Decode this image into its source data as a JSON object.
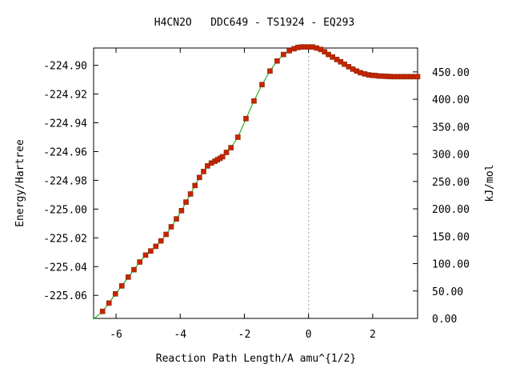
{
  "chart_data": {
    "type": "line",
    "title": "H4CN2O   DDC649 - TS1924 - EQ293",
    "xlabel": "Reaction Path Length/A amu^{1/2}",
    "ylabel": "Energy/Hartree",
    "y2label": "kJ/mol",
    "xlim": [
      -6.7,
      3.4
    ],
    "ylim": [
      -225.076,
      -224.888
    ],
    "y2lim": [
      0,
      493.6
    ],
    "x_ticks": [
      -6,
      -4,
      -2,
      0,
      2
    ],
    "y_ticks": [
      -225.06,
      -225.04,
      -225.02,
      -225.0,
      -224.98,
      -224.96,
      -224.94,
      -224.92,
      -224.9
    ],
    "y2_ticks": [
      0,
      50,
      100,
      150,
      200,
      250,
      300,
      350,
      400,
      450
    ],
    "x_tick_labels": [
      "-6",
      "-4",
      "-2",
      "0",
      "2"
    ],
    "y_tick_labels": [
      "-225.06",
      "-225.04",
      "-225.02",
      "-225.00",
      "-224.98",
      "-224.96",
      "-224.94",
      "-224.92",
      "-224.90"
    ],
    "y2_tick_labels": [
      "0.00",
      "50.00",
      "100.00",
      "150.00",
      "200.00",
      "250.00",
      "300.00",
      "350.00",
      "400.00",
      "450.00"
    ],
    "grid": false,
    "ts_line_x": 0,
    "line_color": "#00a000",
    "marker_color": "#cc2200",
    "series": [
      {
        "x": [
          -6.42,
          -6.22,
          -6.02,
          -5.82,
          -5.62,
          -5.44,
          -5.26,
          -5.08,
          -4.92,
          -4.76,
          -4.6,
          -4.44,
          -4.28,
          -4.12,
          -3.96,
          -3.82,
          -3.68,
          -3.54,
          -3.4,
          -3.27,
          -3.15,
          -3.03,
          -2.92,
          -2.84,
          -2.76,
          -2.68,
          -2.56,
          -2.42,
          -2.2,
          -1.95,
          -1.7,
          -1.45,
          -1.2,
          -0.98,
          -0.78,
          -0.6,
          -0.45,
          -0.33,
          -0.22,
          -0.12,
          0.0,
          0.12,
          0.25,
          0.38,
          0.5,
          0.62,
          0.75,
          0.88,
          1.0,
          1.12,
          1.25,
          1.38,
          1.5,
          1.62,
          1.75,
          1.88,
          2.0,
          2.1,
          2.2,
          2.3,
          2.4,
          2.5,
          2.6,
          2.7,
          2.8,
          2.9,
          3.0,
          3.1,
          3.2,
          3.3,
          3.4
        ],
        "y": [
          -225.0711,
          -225.0654,
          -225.0589,
          -225.0534,
          -225.0473,
          -225.0421,
          -225.0368,
          -225.032,
          -225.0291,
          -225.0259,
          -225.0221,
          -225.0176,
          -225.0123,
          -225.0068,
          -225.0011,
          -224.9951,
          -224.9895,
          -224.9836,
          -224.978,
          -224.9739,
          -224.97,
          -224.968,
          -224.9667,
          -224.9657,
          -224.9647,
          -224.9636,
          -224.9606,
          -224.9573,
          -224.95,
          -224.9371,
          -224.9248,
          -224.9135,
          -224.904,
          -224.897,
          -224.8925,
          -224.8899,
          -224.8885,
          -224.8876,
          -224.8873,
          -224.8873,
          -224.8873,
          -224.8873,
          -224.888,
          -224.889,
          -224.8906,
          -224.8925,
          -224.8943,
          -224.896,
          -224.8976,
          -224.8993,
          -224.901,
          -224.9027,
          -224.904,
          -224.9052,
          -224.906,
          -224.9067,
          -224.907,
          -224.9072,
          -224.9075,
          -224.9076,
          -224.9077,
          -224.9078,
          -224.9079,
          -224.9079,
          -224.9079,
          -224.9079,
          -224.9079,
          -224.9079,
          -224.9079,
          -224.9079,
          -224.9079
        ]
      }
    ]
  }
}
